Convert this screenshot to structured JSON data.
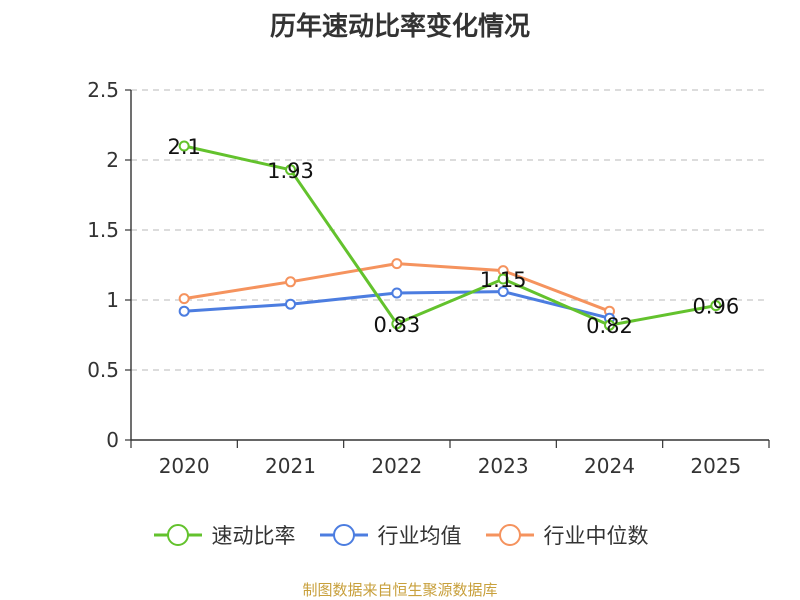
{
  "title": "历年速动比率变化情况",
  "source": "制图数据来自恒生聚源数据库",
  "colors": {
    "series1": "#63c22d",
    "series2": "#4c7de0",
    "series3": "#f5935e",
    "grid": "#c8c8c8",
    "axis": "#333333"
  },
  "chart_data": {
    "type": "line",
    "title": "历年速动比率变化情况",
    "xlabel": "",
    "ylabel": "",
    "ylim": [
      0,
      2.5
    ],
    "yticks": [
      0,
      0.5,
      1,
      1.5,
      2,
      2.5
    ],
    "ytick_labels": [
      "0",
      "0.5",
      "1",
      "1.5",
      "2",
      "2.5"
    ],
    "categories": [
      "2020",
      "2021",
      "2022",
      "2023",
      "2024",
      "2025"
    ],
    "series": [
      {
        "name": "速动比率",
        "values": [
          2.1,
          1.93,
          0.83,
          1.15,
          0.82,
          0.96
        ],
        "labels": [
          "2.1",
          "1.93",
          "0.83",
          "1.15",
          "0.82",
          "0.96"
        ],
        "show_labels": true
      },
      {
        "name": "行业均值",
        "values": [
          0.92,
          0.97,
          1.05,
          1.06,
          0.87,
          null
        ],
        "show_labels": false
      },
      {
        "name": "行业中位数",
        "values": [
          1.01,
          1.13,
          1.26,
          1.21,
          0.92,
          null
        ],
        "show_labels": false
      }
    ],
    "legend_position": "bottom",
    "grid": true
  }
}
